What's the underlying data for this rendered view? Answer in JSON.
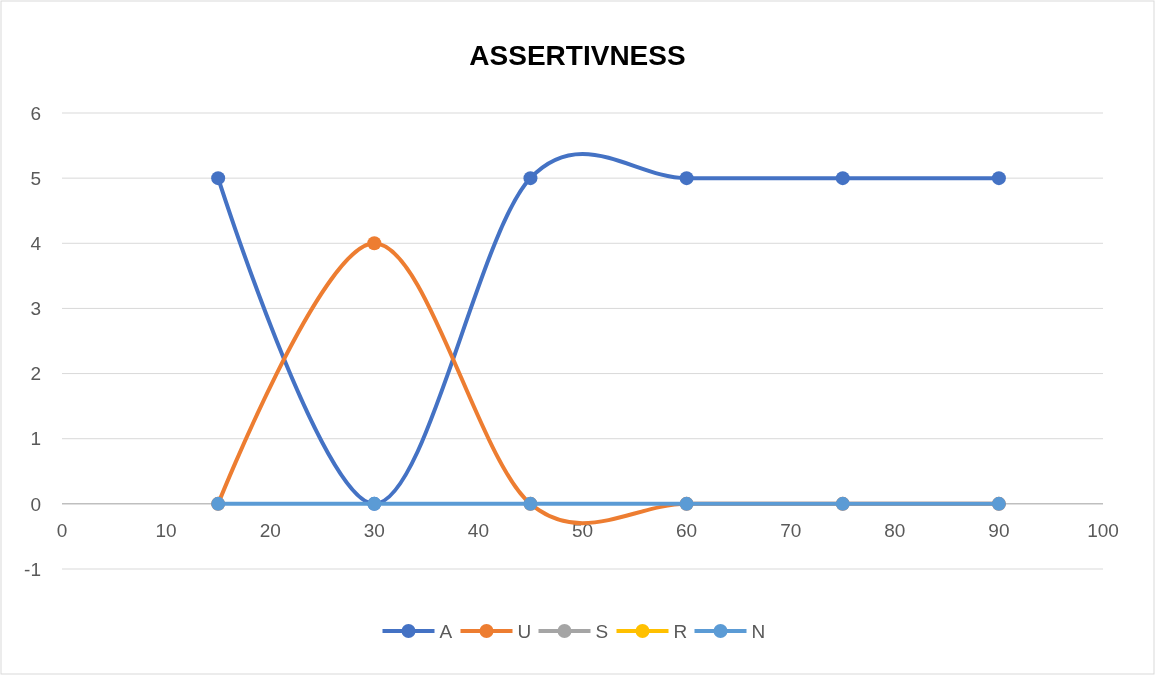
{
  "chart_data": {
    "type": "line",
    "title": "ASSERTIVNESS",
    "x": [
      15,
      30,
      45,
      60,
      75,
      90
    ],
    "series": [
      {
        "name": "A",
        "color": "#4472c4",
        "values": [
          5,
          0,
          5,
          5,
          5,
          5
        ]
      },
      {
        "name": "U",
        "color": "#ed7d31",
        "values": [
          0,
          4,
          0,
          0,
          0,
          0
        ]
      },
      {
        "name": "S",
        "color": "#a5a5a5",
        "values": [
          null,
          null,
          null,
          null,
          null,
          null
        ]
      },
      {
        "name": "R",
        "color": "#ffc000",
        "values": [
          null,
          null,
          null,
          null,
          null,
          null
        ]
      },
      {
        "name": "N",
        "color": "#5b9bd5",
        "values": [
          0,
          0,
          0,
          0,
          0,
          0
        ]
      }
    ],
    "xlim": [
      0,
      100
    ],
    "xticks": [
      0,
      10,
      20,
      30,
      40,
      50,
      60,
      70,
      80,
      90,
      100
    ],
    "ylim": [
      -1,
      6
    ],
    "yticks": [
      -1,
      0,
      1,
      2,
      3,
      4,
      5,
      6
    ],
    "grid": "y",
    "legend": "bottom",
    "marker": "circle",
    "line_style": "solid"
  }
}
